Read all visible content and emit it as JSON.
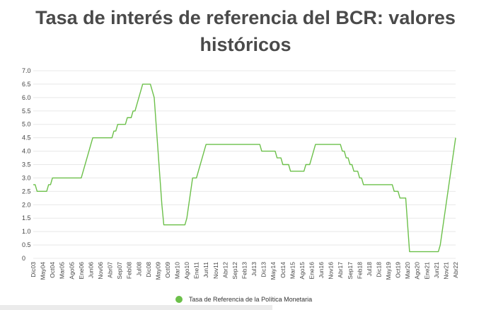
{
  "chart_data": {
    "type": "line",
    "title": "Tasa de interés de referencia del BCR: valores históricos",
    "xlabel": "",
    "ylabel": "",
    "ylim": [
      0,
      7
    ],
    "yticks": [
      "0",
      "0.5",
      "1.0",
      "1.5",
      "2.0",
      "2.5",
      "3.0",
      "3.5",
      "4.0",
      "4.5",
      "5.0",
      "5.5",
      "6.0",
      "6.5",
      "7.0"
    ],
    "xticks": [
      "Dic03",
      "May04",
      "Oct04",
      "Mar05",
      "Ago05",
      "Ene06",
      "Jun06",
      "Nov06",
      "Abr07",
      "Sep07",
      "Feb08",
      "Jul08",
      "Dic08",
      "May09",
      "Oct09",
      "Mar10",
      "Ago10",
      "Ene11",
      "Jun11",
      "Nov11",
      "Abr12",
      "Sep12",
      "Feb13",
      "Jul13",
      "Dic13",
      "May14",
      "Oct14",
      "Mar15",
      "Ago15",
      "Ene16",
      "Jun16",
      "Nov16",
      "Abr17",
      "Sep17",
      "Feb18",
      "Jul18",
      "Dic18",
      "May19",
      "Oct19",
      "Mar20",
      "Ago20",
      "Ene21",
      "Jun21",
      "Nov21",
      "Abr22"
    ],
    "grid": true,
    "legend_position": "bottom",
    "series": [
      {
        "name": "Tasa de Referencia de la Política Monetaria",
        "color": "#6cc04a",
        "points": [
          [
            "2003-12",
            2.75
          ],
          [
            "2004-01",
            2.75
          ],
          [
            "2004-02",
            2.5
          ],
          [
            "2004-06",
            2.5
          ],
          [
            "2004-07",
            2.5
          ],
          [
            "2004-08",
            2.75
          ],
          [
            "2004-09",
            2.75
          ],
          [
            "2004-10",
            3.0
          ],
          [
            "2006-01",
            3.0
          ],
          [
            "2006-02",
            3.25
          ],
          [
            "2006-03",
            3.5
          ],
          [
            "2006-04",
            3.75
          ],
          [
            "2006-05",
            4.0
          ],
          [
            "2006-06",
            4.25
          ],
          [
            "2006-07",
            4.5
          ],
          [
            "2007-05",
            4.5
          ],
          [
            "2007-06",
            4.75
          ],
          [
            "2007-07",
            4.75
          ],
          [
            "2007-08",
            5.0
          ],
          [
            "2007-12",
            5.0
          ],
          [
            "2008-01",
            5.25
          ],
          [
            "2008-03",
            5.25
          ],
          [
            "2008-04",
            5.5
          ],
          [
            "2008-05",
            5.5
          ],
          [
            "2008-06",
            5.75
          ],
          [
            "2008-07",
            6.0
          ],
          [
            "2008-08",
            6.25
          ],
          [
            "2008-09",
            6.5
          ],
          [
            "2009-01",
            6.5
          ],
          [
            "2009-02",
            6.25
          ],
          [
            "2009-03",
            6.0
          ],
          [
            "2009-04",
            5.0
          ],
          [
            "2009-05",
            4.0
          ],
          [
            "2009-06",
            3.0
          ],
          [
            "2009-07",
            2.0
          ],
          [
            "2009-08",
            1.25
          ],
          [
            "2010-07",
            1.25
          ],
          [
            "2010-08",
            1.5
          ],
          [
            "2010-09",
            2.0
          ],
          [
            "2010-10",
            2.5
          ],
          [
            "2010-11",
            3.0
          ],
          [
            "2011-01",
            3.0
          ],
          [
            "2011-02",
            3.25
          ],
          [
            "2011-03",
            3.5
          ],
          [
            "2011-04",
            3.75
          ],
          [
            "2011-05",
            4.0
          ],
          [
            "2011-06",
            4.25
          ],
          [
            "2013-10",
            4.25
          ],
          [
            "2013-11",
            4.0
          ],
          [
            "2014-06",
            4.0
          ],
          [
            "2014-07",
            3.75
          ],
          [
            "2014-09",
            3.75
          ],
          [
            "2014-10",
            3.5
          ],
          [
            "2015-01",
            3.5
          ],
          [
            "2015-02",
            3.25
          ],
          [
            "2015-09",
            3.25
          ],
          [
            "2015-10",
            3.5
          ],
          [
            "2015-12",
            3.5
          ],
          [
            "2016-01",
            3.75
          ],
          [
            "2016-02",
            4.0
          ],
          [
            "2016-03",
            4.25
          ],
          [
            "2017-04",
            4.25
          ],
          [
            "2017-05",
            4.0
          ],
          [
            "2017-06",
            4.0
          ],
          [
            "2017-07",
            3.75
          ],
          [
            "2017-08",
            3.75
          ],
          [
            "2017-09",
            3.5
          ],
          [
            "2017-10",
            3.5
          ],
          [
            "2017-11",
            3.25
          ],
          [
            "2018-01",
            3.25
          ],
          [
            "2018-02",
            3.0
          ],
          [
            "2018-03",
            3.0
          ],
          [
            "2018-04",
            2.75
          ],
          [
            "2019-07",
            2.75
          ],
          [
            "2019-08",
            2.5
          ],
          [
            "2019-10",
            2.5
          ],
          [
            "2019-11",
            2.25
          ],
          [
            "2020-01",
            2.25
          ],
          [
            "2020-02",
            2.25
          ],
          [
            "2020-03",
            1.25
          ],
          [
            "2020-04",
            0.25
          ],
          [
            "2021-07",
            0.25
          ],
          [
            "2021-08",
            0.5
          ],
          [
            "2021-09",
            1.0
          ],
          [
            "2021-10",
            1.5
          ],
          [
            "2021-11",
            2.0
          ],
          [
            "2021-12",
            2.5
          ],
          [
            "2022-01",
            3.0
          ],
          [
            "2022-02",
            3.5
          ],
          [
            "2022-03",
            4.0
          ],
          [
            "2022-04",
            4.5
          ]
        ]
      }
    ]
  }
}
